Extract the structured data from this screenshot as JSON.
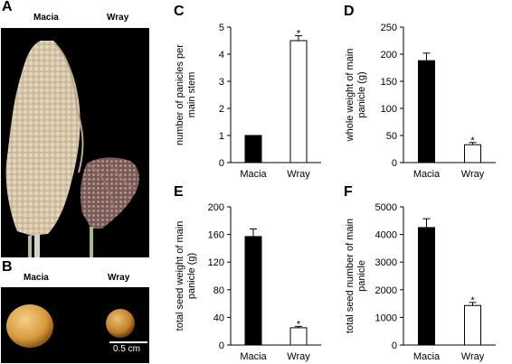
{
  "panels": {
    "A": {
      "letter": "A",
      "labels": [
        "Macia",
        "Wray"
      ]
    },
    "B": {
      "letter": "B",
      "labels": [
        "Macia",
        "Wray"
      ],
      "scale_bar_label": "0.5 cm"
    }
  },
  "colors": {
    "macia_bar": "#000000",
    "wray_bar": "#ffffff",
    "axis": "#000000"
  },
  "chart_data": [
    {
      "letter": "C",
      "type": "bar",
      "categories": [
        "Macia",
        "Wray"
      ],
      "values": [
        1.0,
        4.5
      ],
      "errors": [
        0,
        0.18
      ],
      "significance": [
        "",
        "*"
      ],
      "ylabel_lines": [
        "number of panicles per",
        "main stem"
      ],
      "xlabel": "",
      "ylim": [
        0,
        5
      ],
      "yticks": [
        0,
        1,
        2,
        3,
        4,
        5
      ],
      "ytick_labels": [
        "0",
        "1",
        "2",
        "3",
        "4",
        "5"
      ]
    },
    {
      "letter": "D",
      "type": "bar",
      "categories": [
        "Macia",
        "Wray"
      ],
      "values": [
        188,
        33
      ],
      "errors": [
        14,
        4
      ],
      "significance": [
        "",
        "*"
      ],
      "ylabel_lines": [
        "whole weight of main",
        "panicle (g)"
      ],
      "xlabel": "",
      "ylim": [
        0,
        250
      ],
      "yticks": [
        0,
        50,
        100,
        150,
        200,
        250
      ],
      "ytick_labels": [
        "0",
        "50",
        "100",
        "150",
        "200",
        "250"
      ]
    },
    {
      "letter": "E",
      "type": "bar",
      "categories": [
        "Macia",
        "Wray"
      ],
      "values": [
        157,
        25
      ],
      "errors": [
        11,
        2
      ],
      "significance": [
        "",
        "*"
      ],
      "ylabel_lines": [
        "total seed weight of main",
        "panicle (g)"
      ],
      "xlabel": "",
      "ylim": [
        0,
        200
      ],
      "yticks": [
        0,
        40,
        80,
        120,
        160,
        200
      ],
      "ytick_labels": [
        "0",
        "40",
        "80",
        "120",
        "160",
        "200"
      ]
    },
    {
      "letter": "F",
      "type": "bar",
      "categories": [
        "Macia",
        "Wray"
      ],
      "values": [
        4250,
        1430
      ],
      "errors": [
        320,
        110
      ],
      "significance": [
        "",
        "*"
      ],
      "ylabel_lines": [
        "total seed number of main",
        "panicle"
      ],
      "xlabel": "",
      "ylim": [
        0,
        5000
      ],
      "yticks": [
        0,
        1000,
        2000,
        3000,
        4000,
        5000
      ],
      "ytick_labels": [
        "0",
        "1000",
        "2000",
        "3000",
        "4000",
        "5000"
      ]
    }
  ]
}
